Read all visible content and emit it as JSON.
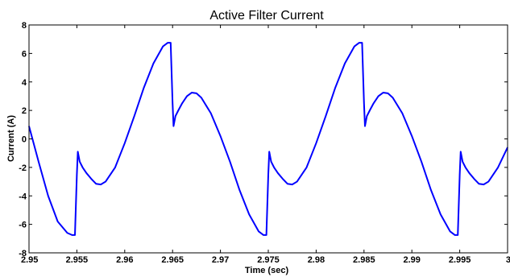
{
  "chart_data": {
    "type": "line",
    "title": "Active Filter Current",
    "xlabel": "Time (sec)",
    "ylabel": "Current (A)",
    "xlim": [
      2.95,
      3.0
    ],
    "ylim": [
      -8,
      8
    ],
    "x_ticks": [
      2.95,
      2.955,
      2.96,
      2.965,
      2.97,
      2.975,
      2.98,
      2.985,
      2.99,
      2.995,
      3.0
    ],
    "x_tick_labels": [
      "2.95",
      "2.955",
      "2.96",
      "2.965",
      "2.97",
      "2.975",
      "2.98",
      "2.985",
      "2.99",
      "2.995",
      "3"
    ],
    "y_ticks": [
      -8,
      -6,
      -4,
      -2,
      0,
      2,
      4,
      6,
      8
    ],
    "y_tick_labels": [
      "-8",
      "-6",
      "-4",
      "-2",
      "0",
      "2",
      "4",
      "6",
      "8"
    ],
    "grid": false,
    "line_color": "#0000ff",
    "series": [
      {
        "x": [
          2.95,
          2.951,
          2.952,
          2.953,
          2.954,
          2.9545,
          2.9548,
          2.955,
          2.9551,
          2.9553,
          2.9556,
          2.956,
          2.9565,
          2.957,
          2.9575,
          2.958,
          2.959,
          2.96,
          2.961,
          2.962,
          2.963,
          2.964,
          2.9645,
          2.9648,
          2.965,
          2.9651,
          2.9653,
          2.9656,
          2.966,
          2.9665,
          2.967,
          2.9675,
          2.968,
          2.969,
          2.97,
          2.971,
          2.972,
          2.973,
          2.974,
          2.9745,
          2.9748,
          2.975,
          2.9751,
          2.9753,
          2.9756,
          2.976,
          2.9765,
          2.977,
          2.9775,
          2.978,
          2.979,
          2.98,
          2.981,
          2.982,
          2.983,
          2.984,
          2.9845,
          2.9848,
          2.985,
          2.9851,
          2.9853,
          2.9856,
          2.986,
          2.9865,
          2.987,
          2.9875,
          2.988,
          2.989,
          2.99,
          2.991,
          2.992,
          2.993,
          2.994,
          2.9945,
          2.9948,
          2.995,
          2.9951,
          2.9953,
          2.9956,
          2.996,
          2.9965,
          2.997,
          2.9975,
          2.998,
          2.999,
          3.0
        ],
        "y": [
          0.9,
          -1.6,
          -4.0,
          -5.8,
          -6.6,
          -6.75,
          -6.75,
          -2.5,
          -0.9,
          -1.6,
          -2.0,
          -2.4,
          -2.8,
          -3.15,
          -3.2,
          -3.0,
          -2.0,
          -0.3,
          1.6,
          3.6,
          5.3,
          6.5,
          6.75,
          6.75,
          2.5,
          0.9,
          1.6,
          2.0,
          2.5,
          3.0,
          3.25,
          3.2,
          2.9,
          1.8,
          0.2,
          -1.6,
          -3.6,
          -5.3,
          -6.5,
          -6.75,
          -6.75,
          -2.5,
          -0.9,
          -1.6,
          -2.0,
          -2.4,
          -2.8,
          -3.15,
          -3.2,
          -3.0,
          -2.0,
          -0.3,
          1.6,
          3.6,
          5.3,
          6.5,
          6.75,
          6.75,
          2.5,
          0.9,
          1.6,
          2.0,
          2.5,
          3.0,
          3.25,
          3.2,
          2.9,
          1.8,
          0.2,
          -1.6,
          -3.6,
          -5.3,
          -6.5,
          -6.75,
          -6.75,
          -2.5,
          -0.9,
          -1.6,
          -2.0,
          -2.4,
          -2.8,
          -3.15,
          -3.2,
          -3.0,
          -2.0,
          -0.6
        ]
      }
    ]
  }
}
